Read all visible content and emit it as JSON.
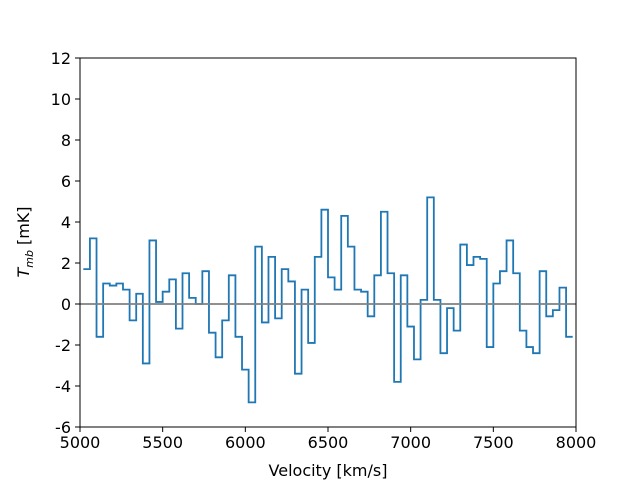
{
  "chart_data": {
    "type": "step",
    "xlabel": "Velocity [km/s]",
    "ylabel": [
      "T",
      "mb",
      "[mK]"
    ],
    "x": [
      5040,
      5080,
      5120,
      5160,
      5200,
      5240,
      5280,
      5320,
      5360,
      5400,
      5440,
      5480,
      5520,
      5560,
      5600,
      5640,
      5680,
      5720,
      5760,
      5800,
      5840,
      5880,
      5920,
      5960,
      6000,
      6040,
      6080,
      6120,
      6160,
      6200,
      6240,
      6280,
      6320,
      6360,
      6400,
      6440,
      6480,
      6520,
      6560,
      6600,
      6640,
      6680,
      6720,
      6760,
      6800,
      6840,
      6880,
      6920,
      6960,
      7000,
      7040,
      7080,
      7120,
      7160,
      7200,
      7240,
      7280,
      7320,
      7360,
      7400,
      7440,
      7480,
      7520,
      7560,
      7600,
      7640,
      7680,
      7720,
      7760,
      7800,
      7840,
      7880,
      7920,
      7960
    ],
    "series": [
      {
        "color": "#1f77b4",
        "values": [
          1.7,
          3.2,
          -1.6,
          1.0,
          0.9,
          1.0,
          0.7,
          -0.8,
          0.5,
          -2.9,
          3.1,
          0.1,
          0.6,
          1.2,
          -1.2,
          1.5,
          0.3,
          0.0,
          1.6,
          -1.4,
          -2.6,
          -0.8,
          1.4,
          -1.6,
          -3.2,
          -4.8,
          2.8,
          -0.9,
          2.3,
          -0.7,
          1.7,
          1.1,
          -3.4,
          0.7,
          -1.9,
          2.3,
          4.6,
          1.3,
          0.7,
          4.3,
          2.8,
          0.7,
          0.6,
          -0.6,
          1.4,
          4.5,
          1.5,
          -3.8,
          1.4,
          -1.1,
          -2.7,
          0.2,
          5.2,
          0.2,
          -2.4,
          -0.2,
          -1.3,
          2.9,
          1.9,
          2.3,
          2.2,
          -2.1,
          1.0,
          1.6,
          3.1,
          1.5,
          -1.3,
          -2.1,
          -2.4,
          1.6,
          -0.6,
          -0.3,
          0.8,
          -1.6
        ]
      }
    ],
    "bin_width": 40,
    "reference_line": {
      "value": 0,
      "color": "#808080"
    },
    "xlim": [
      5000,
      8000
    ],
    "xticks": [
      5000,
      5500,
      6000,
      6500,
      7000,
      7500,
      8000
    ],
    "ylim": [
      -6,
      12
    ],
    "yticks": [
      -6,
      -4,
      -2,
      0,
      2,
      4,
      6,
      8,
      10,
      12
    ],
    "grid": false
  }
}
